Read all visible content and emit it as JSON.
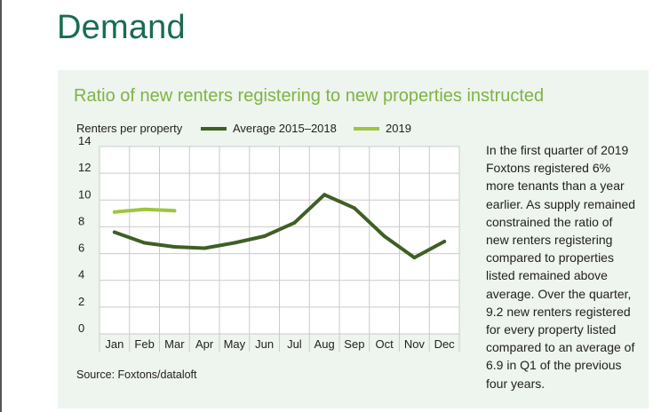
{
  "page": {
    "title": "Demand",
    "source": "Source: Foxtons/dataloft",
    "commentary": "In the first quarter of 2019 Foxtons registered 6% more tenants than a year earlier. As supply remained constrained the ratio of new renters registering compared to properties listed remained above average. Over the quarter, 9.2 new renters registered for every property listed compared to an average of 6.9 in Q1 of the previous four years."
  },
  "chart_data": {
    "type": "line",
    "title": "Ratio of new renters registering to new properties instructed",
    "ylabel": "Renters per property",
    "xlabel": "",
    "categories": [
      "Jan",
      "Feb",
      "Mar",
      "Apr",
      "May",
      "Jun",
      "Jul",
      "Aug",
      "Sep",
      "Oct",
      "Nov",
      "Dec"
    ],
    "ylim": [
      0,
      14
    ],
    "yticks": [
      0,
      2,
      4,
      6,
      8,
      10,
      12,
      14
    ],
    "grid": true,
    "legend_position": "top",
    "series": [
      {
        "name": "Average 2015–2018",
        "color": "#3f5f25",
        "values": [
          7.6,
          6.8,
          6.5,
          6.4,
          6.8,
          7.3,
          8.3,
          10.4,
          9.4,
          7.3,
          5.7,
          6.9
        ]
      },
      {
        "name": "2019",
        "color": "#9dc63f",
        "values": [
          9.1,
          9.3,
          9.2,
          null,
          null,
          null,
          null,
          null,
          null,
          null,
          null,
          null
        ]
      }
    ]
  }
}
